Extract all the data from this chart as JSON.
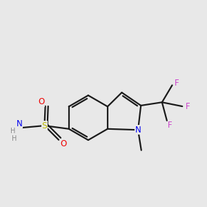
{
  "background_color": "#e8e8e8",
  "bond_color": "#1a1a1a",
  "bond_lw": 1.6,
  "dbo": 0.055,
  "colors": {
    "N": "#0000ee",
    "S": "#bbbb00",
    "O": "#ee0000",
    "F": "#cc44cc",
    "H": "#888888"
  },
  "xlim": [
    -1.6,
    3.4
  ],
  "ylim": [
    -1.5,
    2.2
  ]
}
